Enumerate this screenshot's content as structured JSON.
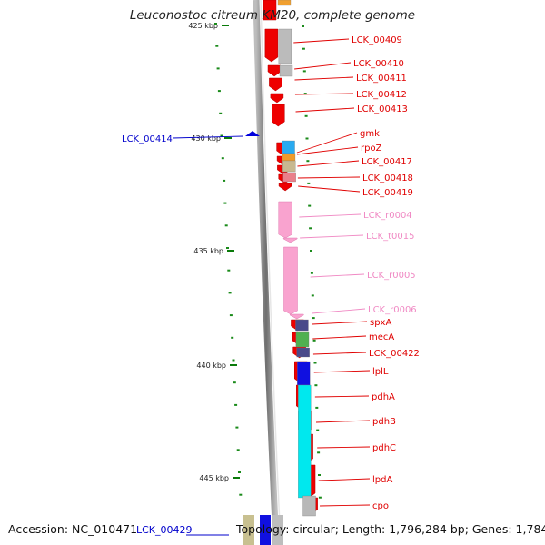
{
  "title": "Leuconostoc citreum KM20, complete genome",
  "footer": {
    "accession": "Accession: NC_010471",
    "left_gene": "LCK_00429",
    "topology": "Topology: circular; Length: 1,796,284 bp; Genes: 1,784"
  },
  "ticks": [
    "425 kbp",
    "430 kbp",
    "435 kbp",
    "440 kbp",
    "445 kbp"
  ],
  "left_labels": [
    "LCK_00414"
  ],
  "gene_labels": [
    {
      "name": "LCK_00409",
      "color": "#e00000"
    },
    {
      "name": "LCK_00410",
      "color": "#e00000"
    },
    {
      "name": "LCK_00411",
      "color": "#e00000"
    },
    {
      "name": "LCK_00412",
      "color": "#e00000"
    },
    {
      "name": "LCK_00413",
      "color": "#e00000"
    },
    {
      "name": "gmk",
      "color": "#e00000"
    },
    {
      "name": "rpoZ",
      "color": "#e00000"
    },
    {
      "name": "LCK_00417",
      "color": "#e00000"
    },
    {
      "name": "LCK_00418",
      "color": "#e00000"
    },
    {
      "name": "LCK_00419",
      "color": "#e00000"
    },
    {
      "name": "LCK_r0004",
      "color": "#f08ac4"
    },
    {
      "name": "LCK_t0015",
      "color": "#f08ac4"
    },
    {
      "name": "LCK_r0005",
      "color": "#f08ac4"
    },
    {
      "name": "LCK_r0006",
      "color": "#f08ac4"
    },
    {
      "name": "spxA",
      "color": "#e00000"
    },
    {
      "name": "mecA",
      "color": "#e00000"
    },
    {
      "name": "LCK_00422",
      "color": "#e00000"
    },
    {
      "name": "lplL",
      "color": "#e00000"
    },
    {
      "name": "pdhA",
      "color": "#e00000"
    },
    {
      "name": "pdhB",
      "color": "#e00000"
    },
    {
      "name": "pdhC",
      "color": "#e00000"
    },
    {
      "name": "lpdA",
      "color": "#e00000"
    },
    {
      "name": "cpo",
      "color": "#e00000"
    }
  ],
  "colors": {
    "cds": "#ee0000",
    "rna": "#f9a3cf",
    "minus_strand": "#0000dd",
    "dots": "#1a8a1a",
    "backbone": "#8a8a8a"
  }
}
